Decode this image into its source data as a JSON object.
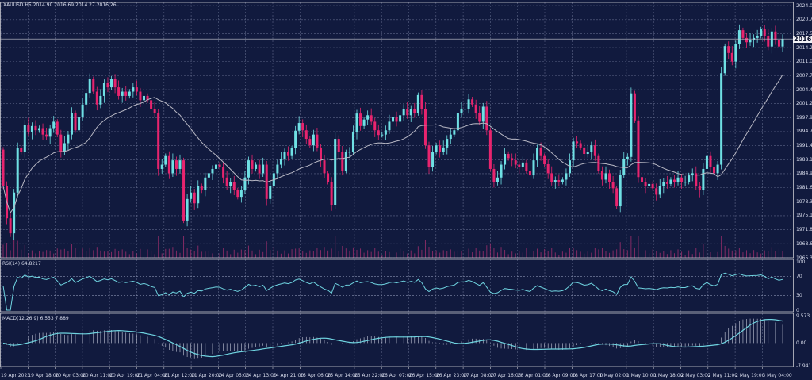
{
  "header": {
    "symbol_info": "XAUUSD.H5  2014.90 2016.69 2014.27 2016.26",
    "rsi_label": "RSI(14) 64.8217",
    "macd_label": "MACD(12,26,9) 6.553 7.889"
  },
  "colors": {
    "background": "#111a3e",
    "bull": "#6fe0e4",
    "bear": "#e8246e",
    "ma_line": "#b8b8c4",
    "indicator_line": "#6fd4e0",
    "grid": "#5e6688",
    "volume": "#a0306e"
  },
  "chart_data": {
    "type": "candlestick",
    "title": "XAUUSD.H5",
    "current_price": "2016.26",
    "price_axis_ticks": [
      "2024.05",
      "2020.75",
      "2017.50",
      "2014.25",
      "2011.00",
      "2007.75",
      "2004.45",
      "2001.20",
      "1997.95",
      "1994.70",
      "1991.40",
      "1988.15",
      "1984.90",
      "1981.65",
      "1978.35",
      "1975.10",
      "1971.85",
      "1968.60",
      "1965.30"
    ],
    "ylim": [
      1965.3,
      2024.05
    ],
    "time_axis_ticks": [
      "19 Apr 2023",
      "19 Apr 18:00",
      "20 Apr 03:00",
      "20 Apr 11:00",
      "20 Apr 19:00",
      "21 Apr 04:00",
      "21 Apr 12:00",
      "21 Apr 20:00",
      "24 Apr 05:00",
      "24 Apr 13:00",
      "24 Apr 21:00",
      "25 Apr 06:00",
      "25 Apr 14:00",
      "25 Apr 22:00",
      "26 Apr 07:00",
      "26 Apr 15:00",
      "26 Apr 23:00",
      "27 Apr 08:00",
      "27 Apr 16:00",
      "28 Apr 01:00",
      "28 Apr 09:00",
      "28 Apr 17:00",
      "1 May 02:00",
      "1 May 10:00",
      "1 May 18:00",
      "2 May 03:00",
      "2 May 11:00",
      "2 May 19:00",
      "3 May 04:00"
    ],
    "first_open": 1990.5,
    "close": [
      1982,
      1974.5,
      1971,
      1980.5,
      1990.8,
      1990,
      1996.3,
      1994.5,
      1996,
      1995,
      1995.5,
      1994,
      1993.5,
      1995.5,
      1997,
      1994,
      1990,
      1992,
      1994,
      1999,
      1995,
      1998,
      2001,
      2003.7,
      2006.9,
      2004,
      2001,
      2003,
      2006,
      2005,
      2007,
      2005,
      2003,
      2004,
      2003,
      2004,
      2005,
      2004,
      2002,
      2003,
      2002,
      2000,
      1999,
      1986,
      1987,
      1989,
      1985,
      1988,
      1986,
      1988,
      1974,
      1979,
      1980.5,
      1978,
      1982,
      1981,
      1984,
      1985,
      1986,
      1987,
      1986.5,
      1984,
      1982,
      1983,
      1981,
      1979.5,
      1981,
      1984,
      1988,
      1986,
      1987,
      1985,
      1987,
      1979,
      1982,
      1985,
      1987,
      1988.4,
      1989.9,
      1989,
      1990.8,
      1994.9,
      1996.7,
      1995,
      1993,
      1991.5,
      1994,
      1991,
      1988,
      1985,
      1983,
      1977.6,
      1993,
      1990,
      1985.6,
      1989.9,
      1990,
      1994.5,
      1998.9,
      1996,
      1997.5,
      1998.5,
      1997,
      1995,
      1993.9,
      1994,
      1995,
      1997,
      1998,
      1997,
      1998.5,
      2000,
      1998.5,
      2000,
      1999,
      2003.2,
      2000,
      1991.5,
      1986.5,
      1990,
      1991.5,
      1990,
      1991,
      1993,
      1994,
      1995,
      1999,
      2000,
      2000,
      2002.2,
      2001,
      1999,
      1997,
      2000.5,
      1995,
      1986,
      1983,
      1984,
      1987,
      1989.5,
      1988.5,
      1988,
      1987,
      1986.5,
      1987.5,
      1985.5,
      1984.5,
      1988,
      1990.8,
      1989,
      1987.1,
      1985,
      1983,
      1983.4,
      1983,
      1983.5,
      1985,
      1988,
      1992.4,
      1992,
      1991,
      1989.5,
      1990,
      1991.5,
      1989,
      1985.5,
      1983.5,
      1985,
      1983,
      1981.5,
      1977.3,
      1984.7,
      1988.4,
      1988.8,
      2003.6,
      1997.3,
      1984.1,
      1983,
      1982,
      1982.5,
      1981.5,
      1980,
      1982,
      1983,
      1982.5,
      1983.5,
      1983,
      1984,
      1983,
      1983,
      1984.5,
      1985,
      1982,
      1981,
      1986,
      1989,
      1986.5,
      1985,
      1987,
      2008.3,
      2014.6,
      2013,
      2011,
      2015,
      2018.3,
      2016.5,
      2015.5,
      2016,
      2016.5,
      2017,
      2018.5,
      2017,
      2014.5,
      2018,
      2016,
      2014.5,
      2016.26
    ],
    "rsi": {
      "ticks": [
        "100",
        "70",
        "30",
        "0"
      ],
      "ylim": [
        0,
        100
      ]
    },
    "macd": {
      "ticks": [
        "9.573",
        "0.00",
        "-7.941"
      ],
      "ylim": [
        -7.941,
        9.573
      ]
    }
  }
}
